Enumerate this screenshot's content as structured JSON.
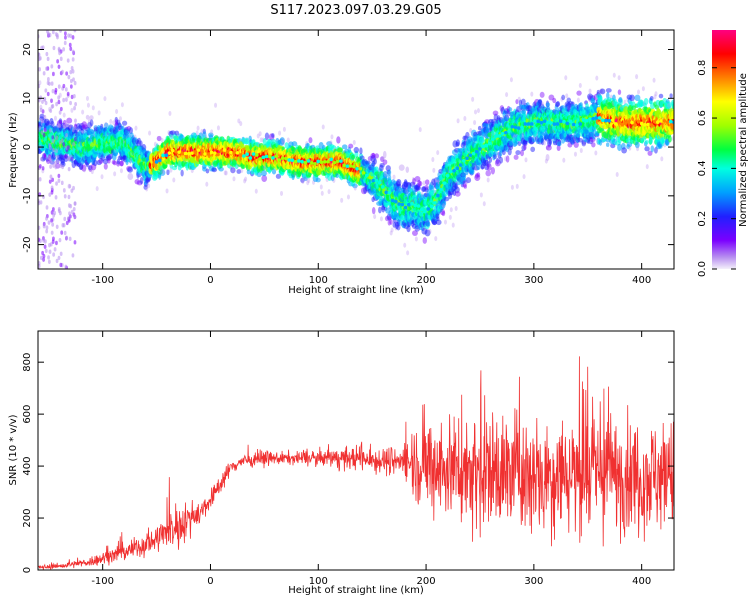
{
  "title": "S117.2023.097.03.29.G05",
  "chart_data": [
    {
      "type": "heatmap",
      "title": "S117.2023.097.03.29.G05",
      "xlabel": "Height of straight line (km)",
      "ylabel": "Frequency (Hz)",
      "xlim": [
        -160,
        430
      ],
      "ylim": [
        -25,
        24
      ],
      "x_ticks": [
        -100,
        0,
        100,
        200,
        300,
        400
      ],
      "y_ticks": [
        -20,
        -10,
        0,
        10,
        20
      ],
      "grid": false,
      "colorbar": {
        "label": "Normalized spectral amplitude",
        "range": [
          0,
          0.95
        ],
        "ticks": [
          0.0,
          0.2,
          0.4,
          0.6,
          0.8
        ],
        "colormap": "rainbow",
        "colors": [
          "#f4f0fa",
          "#b78ef0",
          "#7b00ff",
          "#2020ff",
          "#00a0ff",
          "#00ffe0",
          "#00ff40",
          "#a0ff00",
          "#ffff00",
          "#ff8000",
          "#ff0000",
          "#ff0080"
        ]
      },
      "ridge": {
        "x": [
          -160,
          -140,
          -120,
          -100,
          -80,
          -60,
          -50,
          -40,
          -30,
          -10,
          0,
          20,
          40,
          60,
          80,
          100,
          120,
          140,
          160,
          170,
          180,
          190,
          200,
          210,
          220,
          240,
          260,
          280,
          300,
          320,
          340,
          360,
          380,
          400,
          420,
          430
        ],
        "freq": [
          2,
          1,
          0,
          1,
          1,
          -4,
          -3,
          -1,
          -1,
          -1,
          -1,
          -1,
          -2,
          -2,
          -3,
          -3,
          -3,
          -5,
          -8,
          -11,
          -12,
          -12,
          -13,
          -11,
          -6,
          -2,
          1,
          4,
          5,
          5,
          5,
          6,
          5,
          5,
          5,
          5
        ]
      }
    },
    {
      "type": "line",
      "xlabel": "Height of straight line (km)",
      "ylabel": "SNR (10 * v/v)",
      "xlim": [
        -160,
        430
      ],
      "ylim": [
        0,
        920
      ],
      "x_ticks": [
        -100,
        0,
        100,
        200,
        300,
        400
      ],
      "y_ticks": [
        0,
        200,
        400,
        600,
        800
      ],
      "grid": false,
      "color": "#f03030",
      "series": [
        {
          "x": [
            -160,
            -140,
            -120,
            -100,
            -80,
            -60,
            -50,
            -40,
            -30,
            -20,
            -10,
            0,
            10,
            20,
            30,
            50,
            80,
            100,
            120,
            140,
            160,
            180,
            190,
            200,
            230,
            260,
            300,
            340,
            380,
            430
          ],
          "mean": [
            10,
            15,
            25,
            45,
            70,
            100,
            120,
            150,
            170,
            200,
            220,
            270,
            340,
            400,
            420,
            430,
            430,
            430,
            430,
            430,
            420,
            420,
            420,
            400,
            390,
            380,
            370,
            380,
            370,
            360
          ],
          "spread": [
            8,
            10,
            15,
            25,
            35,
            45,
            55,
            70,
            90,
            60,
            50,
            40,
            35,
            30,
            25,
            25,
            25,
            30,
            40,
            50,
            50,
            60,
            150,
            180,
            220,
            230,
            240,
            230,
            220,
            210
          ]
        }
      ]
    }
  ]
}
